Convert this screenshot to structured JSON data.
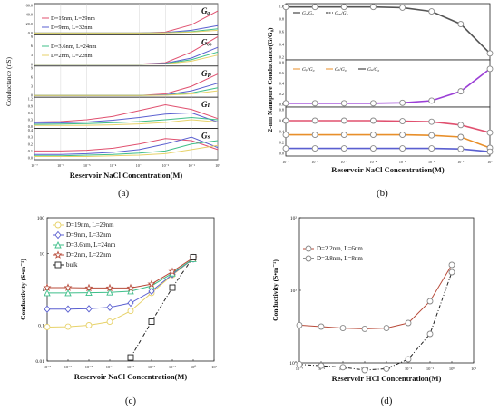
{
  "figure": {
    "panel_labels": [
      "(a)",
      "(b)",
      "(c)",
      "(d)"
    ]
  },
  "colors": {
    "red": "#e0506f",
    "blue": "#5a5fd0",
    "green": "#3fbf8a",
    "yellow": "#e7d26a",
    "purple": "#9b3fd6",
    "orange": "#e88f2a",
    "darkred": "#b84b3a",
    "grey": "#555555",
    "black": "#222222"
  },
  "chart_data": [
    {
      "id": "a",
      "type": "line",
      "xlabel": "Reservoir NaCl Concentration(M)",
      "ylabel": "Conductance (nS)",
      "x_ticks": [
        "10⁻⁷",
        "10⁻⁶",
        "10⁻⁵",
        "10⁻⁴",
        "10⁻³",
        "10⁻²",
        "10⁻¹",
        "10⁰"
      ],
      "legend": [
        "D=19nm, L=29nm",
        "D=9nm, L=32nm",
        "D=3.6nm, L=24nm",
        "D=2nm, L=22nm"
      ],
      "subplots": [
        {
          "label": "Gₐ",
          "ylim": [
            0,
            60
          ],
          "y_ticks": [
            "0.0",
            "20.0",
            "40.0",
            "60.0"
          ],
          "series": [
            {
              "name": "D=19nm, L=29nm",
              "x": [
                -7,
                -6,
                -5,
                -4,
                -3,
                -2,
                -1,
                0
              ],
              "y": [
                0,
                0,
                0,
                0,
                0,
                2,
                18,
                48
              ]
            },
            {
              "name": "D=9nm, L=32nm",
              "x": [
                -7,
                -6,
                -5,
                -4,
                -3,
                -2,
                -1,
                0
              ],
              "y": [
                0,
                0,
                0,
                0,
                0,
                1,
                6,
                16
              ]
            },
            {
              "name": "D=3.6nm, L=24nm",
              "x": [
                -7,
                -6,
                -5,
                -4,
                -3,
                -2,
                -1,
                0
              ],
              "y": [
                0,
                0,
                0,
                0,
                0,
                0.5,
                3,
                9
              ]
            },
            {
              "name": "D=2nm, L=22nm",
              "x": [
                -7,
                -6,
                -5,
                -4,
                -3,
                -2,
                -1,
                0
              ],
              "y": [
                0,
                0,
                0,
                0,
                0,
                0.3,
                2,
                6
              ]
            }
          ]
        },
        {
          "label": "Gₒₒ",
          "ylim": [
            0,
            9
          ],
          "y_ticks": [
            "0",
            "3",
            "6",
            "9"
          ],
          "series": [
            {
              "name": "D=19nm, L=29nm",
              "x": [
                -7,
                -6,
                -5,
                -4,
                -3,
                -2,
                -1,
                0
              ],
              "y": [
                0,
                0,
                0,
                0,
                0,
                0.5,
                4,
                9
              ]
            },
            {
              "name": "D=9nm, L=32nm",
              "x": [
                -7,
                -6,
                -5,
                -4,
                -3,
                -2,
                -1,
                0
              ],
              "y": [
                0,
                0,
                0,
                0,
                0,
                0.3,
                2,
                5.5
              ]
            },
            {
              "name": "D=3.6nm, L=24nm",
              "x": [
                -7,
                -6,
                -5,
                -4,
                -3,
                -2,
                -1,
                0
              ],
              "y": [
                0,
                0,
                0,
                0,
                0,
                0.2,
                1.5,
                4
              ]
            },
            {
              "name": "D=2nm, L=22nm",
              "x": [
                -7,
                -6,
                -5,
                -4,
                -3,
                -2,
                -1,
                0
              ],
              "y": [
                0,
                0,
                0,
                0,
                0,
                0.1,
                1,
                3
              ]
            }
          ]
        },
        {
          "label": "Gₚ",
          "ylim": [
            0,
            9
          ],
          "y_ticks": [
            "0",
            "3",
            "6",
            "9"
          ],
          "series": [
            {
              "name": "D=19nm, L=29nm",
              "x": [
                -7,
                -6,
                -5,
                -4,
                -3,
                -2,
                -1,
                0
              ],
              "y": [
                0,
                0,
                0,
                0,
                0,
                0.5,
                3,
                7
              ]
            },
            {
              "name": "D=9nm, L=32nm",
              "x": [
                -7,
                -6,
                -5,
                -4,
                -3,
                -2,
                -1,
                0
              ],
              "y": [
                0,
                0,
                0,
                0,
                0,
                0.2,
                1.5,
                4
              ]
            },
            {
              "name": "D=3.6nm, L=24nm",
              "x": [
                -7,
                -6,
                -5,
                -4,
                -3,
                -2,
                -1,
                0
              ],
              "y": [
                0,
                0,
                0,
                0,
                0,
                0.1,
                0.8,
                2.5
              ]
            },
            {
              "name": "D=2nm, L=22nm",
              "x": [
                -7,
                -6,
                -5,
                -4,
                -3,
                -2,
                -1,
                0
              ],
              "y": [
                0,
                0,
                0,
                0,
                0,
                0.05,
                0.5,
                1.5
              ]
            }
          ]
        },
        {
          "label": "Gₗ",
          "ylim": [
            0,
            1.2
          ],
          "y_ticks": [
            "0.0",
            "0.3",
            "0.6",
            "0.9",
            "1.2"
          ],
          "series": [
            {
              "name": "D=19nm, L=29nm",
              "x": [
                -7,
                -6,
                -5,
                -4,
                -3,
                -2,
                -1,
                0
              ],
              "y": [
                0.2,
                0.22,
                0.3,
                0.45,
                0.7,
                0.95,
                0.75,
                0.35
              ]
            },
            {
              "name": "D=9nm, L=32nm",
              "x": [
                -7,
                -6,
                -5,
                -4,
                -3,
                -2,
                -1,
                0
              ],
              "y": [
                0.15,
                0.16,
                0.2,
                0.28,
                0.4,
                0.55,
                0.6,
                0.2
              ]
            },
            {
              "name": "D=3.6nm, L=24nm",
              "x": [
                -7,
                -6,
                -5,
                -4,
                -3,
                -2,
                -1,
                0
              ],
              "y": [
                0.1,
                0.11,
                0.13,
                0.17,
                0.22,
                0.3,
                0.4,
                0.3
              ]
            },
            {
              "name": "D=2nm, L=22nm",
              "x": [
                -7,
                -6,
                -5,
                -4,
                -3,
                -2,
                -1,
                0
              ],
              "y": [
                0.05,
                0.05,
                0.06,
                0.08,
                0.12,
                0.18,
                0.3,
                0.2
              ]
            }
          ]
        },
        {
          "label": "Gₛ",
          "ylim": [
            0,
            0.4
          ],
          "y_ticks": [
            "0.0",
            "0.1",
            "0.2",
            "0.3",
            "0.4"
          ],
          "series": [
            {
              "name": "D=19nm, L=29nm",
              "x": [
                -7,
                -6,
                -5,
                -4,
                -3,
                -2,
                -1,
                0
              ],
              "y": [
                0.1,
                0.1,
                0.11,
                0.14,
                0.2,
                0.28,
                0.25,
                0.12
              ]
            },
            {
              "name": "D=9nm, L=32nm",
              "x": [
                -7,
                -6,
                -5,
                -4,
                -3,
                -2,
                -1,
                0
              ],
              "y": [
                0.05,
                0.05,
                0.06,
                0.08,
                0.12,
                0.2,
                0.3,
                0.15
              ]
            },
            {
              "name": "D=3.6nm, L=24nm",
              "x": [
                -7,
                -6,
                -5,
                -4,
                -3,
                -2,
                -1,
                0
              ],
              "y": [
                0.03,
                0.03,
                0.04,
                0.05,
                0.07,
                0.1,
                0.2,
                0.25
              ]
            },
            {
              "name": "D=2nm, L=22nm",
              "x": [
                -7,
                -6,
                -5,
                -4,
                -3,
                -2,
                -1,
                0
              ],
              "y": [
                0.02,
                0.02,
                0.02,
                0.03,
                0.04,
                0.06,
                0.12,
                0.18
              ]
            }
          ]
        }
      ]
    },
    {
      "id": "b",
      "type": "line",
      "xlabel": "Reservoir NaCl Concentration(M)",
      "ylabel": "2-nm Nanopore Conductance(G/G₀)",
      "x_ticks": [
        "10⁻⁷",
        "10⁻⁶",
        "10⁻⁵",
        "10⁻⁴",
        "10⁻³",
        "10⁻²",
        "10⁻¹",
        "10⁰"
      ],
      "subplots": [
        {
          "ylim": [
            0.2,
            1.0
          ],
          "y_ticks": [
            "0.2",
            "0.4",
            "0.6",
            "0.8",
            "1.0"
          ],
          "legend": [
            "Gₐ/G₀",
            "Gₒₒ/G₀"
          ],
          "series": [
            {
              "name": "Gₐ/G₀",
              "x": [
                -7,
                -6,
                -5,
                -4,
                -3,
                -2,
                -1,
                0
              ],
              "y": [
                0.99,
                0.99,
                0.99,
                0.99,
                0.98,
                0.92,
                0.72,
                0.26
              ]
            }
          ]
        },
        {
          "ylim": [
            0.0,
            0.8
          ],
          "y_ticks": [
            "0.0",
            "0.2",
            "0.4",
            "0.6",
            "0.8"
          ],
          "legend": [
            "Gₚ/G₀",
            "Gₗ/G₀",
            "Gₛ/G₀"
          ],
          "series": [
            {
              "name": "Gₚ/G₀",
              "x": [
                -7,
                -6,
                -5,
                -4,
                -3,
                -2,
                -1,
                0
              ],
              "y": [
                0.02,
                0.02,
                0.02,
                0.02,
                0.03,
                0.07,
                0.25,
                0.68
              ]
            }
          ]
        },
        {
          "ylim": [
            0.0,
            0.8
          ],
          "y_ticks": [
            "0.0",
            "0.2",
            "0.4",
            "0.6",
            "0.8"
          ],
          "series": [
            {
              "name": "Gₗ/G₀",
              "x": [
                -7,
                -6,
                -5,
                -4,
                -3,
                -2,
                -1,
                0
              ],
              "y": [
                0.6,
                0.6,
                0.6,
                0.6,
                0.59,
                0.58,
                0.52,
                0.38
              ]
            },
            {
              "name": "Gₒₒ/G₀",
              "x": [
                -7,
                -6,
                -5,
                -4,
                -3,
                -2,
                -1,
                0
              ],
              "y": [
                0.34,
                0.34,
                0.34,
                0.34,
                0.34,
                0.33,
                0.3,
                0.1
              ]
            },
            {
              "name": "Gₛ/G₀",
              "x": [
                -7,
                -6,
                -5,
                -4,
                -3,
                -2,
                -1,
                0
              ],
              "y": [
                0.09,
                0.09,
                0.09,
                0.09,
                0.09,
                0.09,
                0.08,
                0.03
              ]
            }
          ]
        }
      ]
    },
    {
      "id": "c",
      "type": "line",
      "xlabel": "Reservoir NaCl Concentration(M)",
      "ylabel": "Conductivity (S•m⁻¹)",
      "yscale": "log",
      "xlim": [
        -7,
        1
      ],
      "ylim_log10": [
        -2,
        2
      ],
      "x_ticks": [
        "10⁻⁷",
        "10⁻⁶",
        "10⁻⁵",
        "10⁻⁴",
        "10⁻³",
        "10⁻²",
        "10⁻¹",
        "10⁰",
        "10¹"
      ],
      "y_ticks": [
        "0.01",
        "0.1",
        "1",
        "10",
        "100"
      ],
      "legend_position": "top-left",
      "series": [
        {
          "name": "D=19nm, L=29nm",
          "marker": "circle",
          "x": [
            -7,
            -6,
            -5,
            -4,
            -3,
            -2,
            -1,
            0
          ],
          "y_log10": [
            -1.05,
            -1.04,
            -1.0,
            -0.9,
            -0.6,
            -0.1,
            0.4,
            0.85
          ]
        },
        {
          "name": "D=9nm, L=32nm",
          "marker": "diamond",
          "x": [
            -7,
            -6,
            -5,
            -4,
            -3,
            -2,
            -1,
            0
          ],
          "y_log10": [
            -0.55,
            -0.55,
            -0.54,
            -0.5,
            -0.38,
            -0.05,
            0.42,
            0.85
          ]
        },
        {
          "name": "D=3.6nm, L=24nm",
          "marker": "triangle",
          "x": [
            -7,
            -6,
            -5,
            -4,
            -3,
            -2,
            -1,
            0
          ],
          "y_log10": [
            -0.1,
            -0.1,
            -0.09,
            -0.08,
            -0.05,
            0.1,
            0.45,
            0.85
          ]
        },
        {
          "name": "D=2nm, L=22nm",
          "marker": "star",
          "x": [
            -7,
            -6,
            -5,
            -4,
            -3,
            -2,
            -1,
            0
          ],
          "y_log10": [
            0.05,
            0.05,
            0.04,
            0.04,
            0.04,
            0.15,
            0.5,
            0.88
          ]
        },
        {
          "name": "bulk",
          "marker": "square",
          "x": [
            -3,
            -2,
            -1,
            0
          ],
          "y_log10": [
            -1.9,
            -0.9,
            0.05,
            0.9
          ]
        }
      ]
    },
    {
      "id": "d",
      "type": "line",
      "xlabel": "Reservoir HCl Concentration(M)",
      "ylabel": "Conductivity (S•m⁻¹)",
      "yscale": "log",
      "xlim": [
        -7,
        1
      ],
      "ylim_log10": [
        0,
        2
      ],
      "x_ticks": [
        "10⁻⁷",
        "10⁻⁶",
        "10⁻⁵",
        "10⁻⁴",
        "10⁻³",
        "10⁻²",
        "10⁻¹",
        "10⁰",
        "10¹"
      ],
      "y_ticks": [
        "10⁰",
        "10¹",
        "10²"
      ],
      "legend_position": "top-left",
      "series": [
        {
          "name": "D=2.2nm, L=6nm",
          "x": [
            -7,
            -6,
            -5,
            -4,
            -3,
            -2,
            -1,
            0
          ],
          "y_log10": [
            0.52,
            0.5,
            0.48,
            0.47,
            0.48,
            0.55,
            0.85,
            1.35
          ]
        },
        {
          "name": "D=3.8nm, L=8nm",
          "x": [
            -7,
            -6,
            -5,
            -4,
            -3,
            -2,
            -1,
            0
          ],
          "y_log10": [
            -0.02,
            -0.04,
            -0.06,
            -0.1,
            -0.08,
            0.05,
            0.4,
            1.25
          ]
        }
      ]
    }
  ]
}
